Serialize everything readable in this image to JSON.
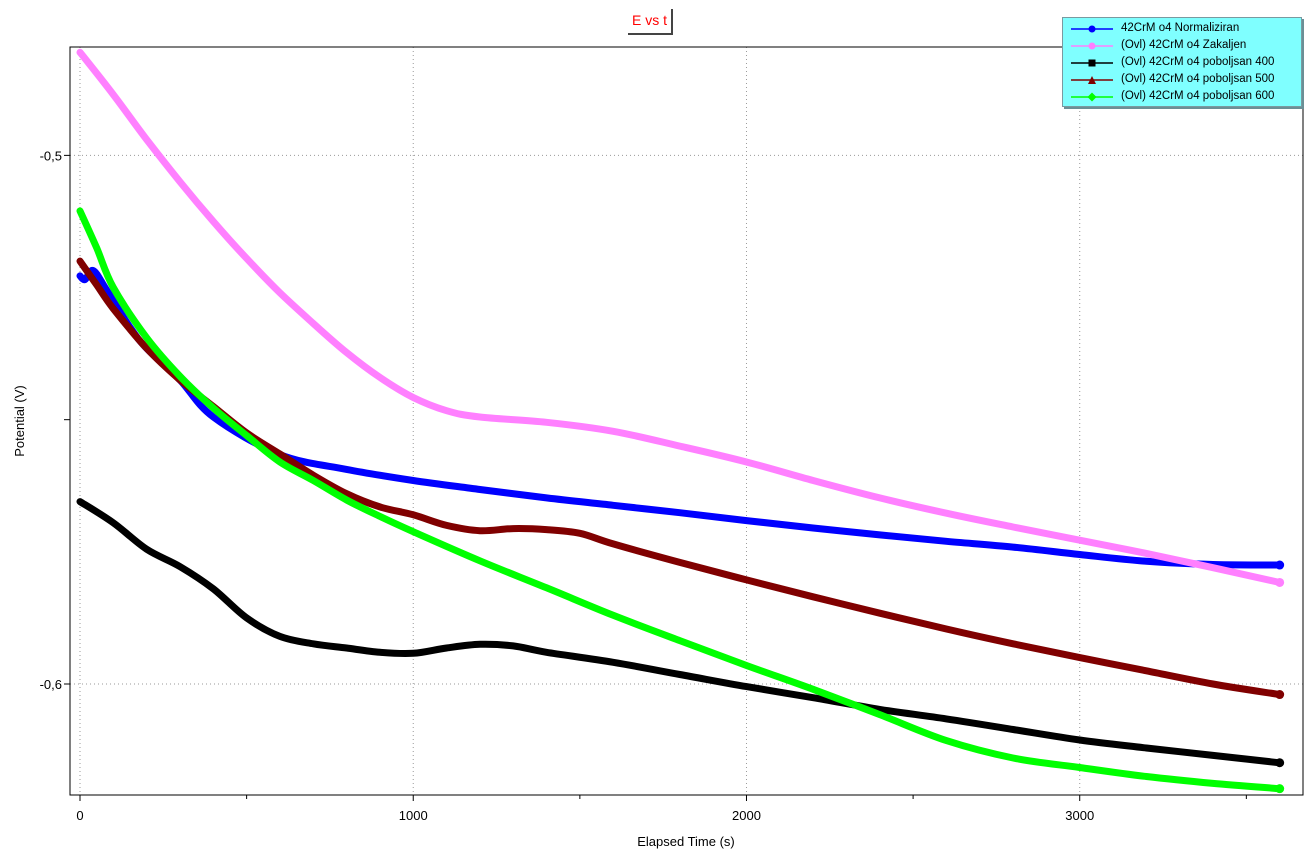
{
  "chart_data": {
    "type": "line",
    "title": "E vs t",
    "xlabel": "Elapsed Time (s)",
    "ylabel": "Potential (V)",
    "xlim": [
      -30,
      3670
    ],
    "ylim": [
      -0.621,
      -0.4795
    ],
    "x_ticks": [
      0,
      1000,
      2000,
      3000
    ],
    "x_tick_labels": [
      "0",
      "1000",
      "2000",
      "3000"
    ],
    "y_ticks": [
      -0.5,
      -0.55,
      -0.6
    ],
    "y_tick_labels": [
      "-0,5",
      "",
      "-0,6"
    ],
    "grid": true,
    "legend_position": "top-right",
    "series": [
      {
        "name": "42CrM o4 Normaliziran",
        "color": "#0000ff",
        "marker": "circle",
        "points": [
          [
            0,
            -0.5228
          ],
          [
            15,
            -0.5235
          ],
          [
            40,
            -0.5218
          ],
          [
            80,
            -0.5255
          ],
          [
            150,
            -0.5325
          ],
          [
            200,
            -0.5365
          ],
          [
            300,
            -0.5425
          ],
          [
            400,
            -0.5495
          ],
          [
            600,
            -0.5566
          ],
          [
            800,
            -0.5594
          ],
          [
            1000,
            -0.5615
          ],
          [
            1200,
            -0.5632
          ],
          [
            1400,
            -0.5648
          ],
          [
            1600,
            -0.5662
          ],
          [
            1800,
            -0.5676
          ],
          [
            2000,
            -0.5691
          ],
          [
            2200,
            -0.5705
          ],
          [
            2400,
            -0.5718
          ],
          [
            2600,
            -0.573
          ],
          [
            2800,
            -0.5741
          ],
          [
            3000,
            -0.5755
          ],
          [
            3200,
            -0.5768
          ],
          [
            3400,
            -0.5774
          ],
          [
            3600,
            -0.5775
          ]
        ]
      },
      {
        "name": "(Ovl) 42CrM o4 Zakaljen",
        "color": "#ff80ff",
        "marker": "circle",
        "points": [
          [
            0,
            -0.4805
          ],
          [
            100,
            -0.4885
          ],
          [
            200,
            -0.497
          ],
          [
            300,
            -0.505
          ],
          [
            400,
            -0.5125
          ],
          [
            500,
            -0.5195
          ],
          [
            600,
            -0.526
          ],
          [
            700,
            -0.5318
          ],
          [
            800,
            -0.5373
          ],
          [
            900,
            -0.542
          ],
          [
            1000,
            -0.5458
          ],
          [
            1100,
            -0.5483
          ],
          [
            1200,
            -0.5495
          ],
          [
            1400,
            -0.5505
          ],
          [
            1600,
            -0.5522
          ],
          [
            1800,
            -0.555
          ],
          [
            2000,
            -0.558
          ],
          [
            2200,
            -0.5615
          ],
          [
            2400,
            -0.5648
          ],
          [
            2600,
            -0.5677
          ],
          [
            2800,
            -0.5703
          ],
          [
            3000,
            -0.5728
          ],
          [
            3200,
            -0.5753
          ],
          [
            3400,
            -0.578
          ],
          [
            3600,
            -0.5808
          ]
        ]
      },
      {
        "name": "(Ovl) 42CrM o4 poboljsan 400",
        "color": "#000000",
        "marker": "square",
        "points": [
          [
            0,
            -0.5655
          ],
          [
            100,
            -0.5695
          ],
          [
            200,
            -0.5745
          ],
          [
            300,
            -0.5778
          ],
          [
            400,
            -0.582
          ],
          [
            500,
            -0.5875
          ],
          [
            600,
            -0.591
          ],
          [
            700,
            -0.5924
          ],
          [
            800,
            -0.5932
          ],
          [
            900,
            -0.594
          ],
          [
            1000,
            -0.5942
          ],
          [
            1100,
            -0.5932
          ],
          [
            1200,
            -0.5925
          ],
          [
            1300,
            -0.5928
          ],
          [
            1400,
            -0.594
          ],
          [
            1600,
            -0.5959
          ],
          [
            1800,
            -0.5982
          ],
          [
            2000,
            -0.6005
          ],
          [
            2200,
            -0.6026
          ],
          [
            2400,
            -0.6048
          ],
          [
            2600,
            -0.6066
          ],
          [
            2800,
            -0.6086
          ],
          [
            3000,
            -0.6106
          ],
          [
            3200,
            -0.6121
          ],
          [
            3400,
            -0.6135
          ],
          [
            3600,
            -0.6149
          ]
        ]
      },
      {
        "name": "(Ovl) 42CrM o4 poboljsan 500",
        "color": "#800000",
        "marker": "triangle",
        "points": [
          [
            0,
            -0.52
          ],
          [
            50,
            -0.5245
          ],
          [
            100,
            -0.529
          ],
          [
            200,
            -0.5365
          ],
          [
            300,
            -0.5425
          ],
          [
            400,
            -0.5475
          ],
          [
            500,
            -0.5525
          ],
          [
            600,
            -0.5565
          ],
          [
            700,
            -0.5605
          ],
          [
            800,
            -0.564
          ],
          [
            900,
            -0.5665
          ],
          [
            1000,
            -0.568
          ],
          [
            1100,
            -0.57
          ],
          [
            1200,
            -0.571
          ],
          [
            1300,
            -0.5706
          ],
          [
            1400,
            -0.5708
          ],
          [
            1500,
            -0.5715
          ],
          [
            1600,
            -0.5735
          ],
          [
            1800,
            -0.577
          ],
          [
            2000,
            -0.5803
          ],
          [
            2200,
            -0.5835
          ],
          [
            2400,
            -0.5866
          ],
          [
            2600,
            -0.5896
          ],
          [
            2800,
            -0.5924
          ],
          [
            3000,
            -0.595
          ],
          [
            3200,
            -0.5975
          ],
          [
            3400,
            -0.6
          ],
          [
            3600,
            -0.602
          ]
        ]
      },
      {
        "name": "(Ovl) 42CrM o4 poboljsan 600",
        "color": "#00ff00",
        "marker": "diamond",
        "points": [
          [
            0,
            -0.5105
          ],
          [
            50,
            -0.5175
          ],
          [
            100,
            -0.525
          ],
          [
            200,
            -0.5345
          ],
          [
            300,
            -0.5418
          ],
          [
            400,
            -0.5478
          ],
          [
            500,
            -0.553
          ],
          [
            600,
            -0.558
          ],
          [
            700,
            -0.5615
          ],
          [
            800,
            -0.5652
          ],
          [
            900,
            -0.5683
          ],
          [
            1000,
            -0.5712
          ],
          [
            1200,
            -0.5767
          ],
          [
            1400,
            -0.5818
          ],
          [
            1600,
            -0.587
          ],
          [
            1800,
            -0.5918
          ],
          [
            2000,
            -0.5965
          ],
          [
            2200,
            -0.601
          ],
          [
            2400,
            -0.6058
          ],
          [
            2600,
            -0.6107
          ],
          [
            2800,
            -0.614
          ],
          [
            3000,
            -0.6158
          ],
          [
            3200,
            -0.6175
          ],
          [
            3400,
            -0.6188
          ],
          [
            3600,
            -0.6198
          ]
        ]
      }
    ]
  }
}
